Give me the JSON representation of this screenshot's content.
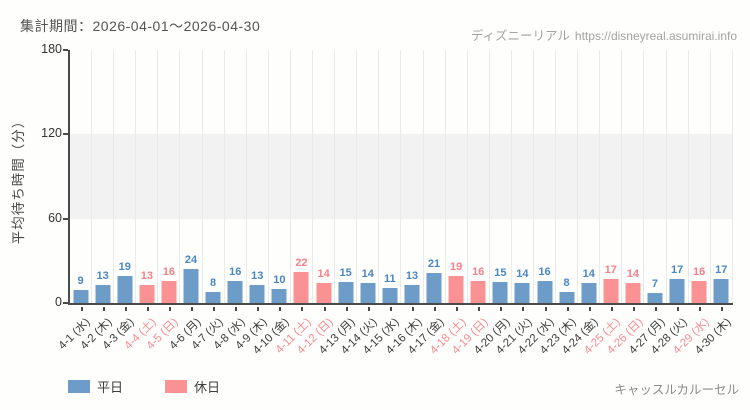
{
  "header": {
    "period_label": "集計期間：2026-04-01～2026-04-30",
    "watermark_site": "ディズニーリアル",
    "watermark_url": "https://disneyreal.asumirai.info"
  },
  "chart_data": {
    "type": "bar",
    "title": "",
    "xlabel": "",
    "ylabel": "平均待ち時間（分）",
    "ylim": [
      0,
      180
    ],
    "yticks": [
      0,
      60,
      120,
      180
    ],
    "band": {
      "from": 60,
      "to": 120,
      "color": "#f2f2f2"
    },
    "grid": "vertical",
    "legend_position": "bottom",
    "categories": [
      "4-1 (水)",
      "4-2 (木)",
      "4-3 (金)",
      "4-4 (土)",
      "4-5 (日)",
      "4-6 (月)",
      "4-7 (火)",
      "4-8 (水)",
      "4-9 (木)",
      "4-10 (金)",
      "4-11 (土)",
      "4-12 (日)",
      "4-13 (月)",
      "4-14 (火)",
      "4-15 (水)",
      "4-16 (木)",
      "4-17 (金)",
      "4-18 (土)",
      "4-19 (日)",
      "4-20 (月)",
      "4-21 (火)",
      "4-22 (水)",
      "4-23 (木)",
      "4-24 (金)",
      "4-25 (土)",
      "4-26 (日)",
      "4-27 (月)",
      "4-28 (火)",
      "4-29 (水)",
      "4-30 (木)"
    ],
    "values": [
      9,
      13,
      19,
      13,
      16,
      24,
      8,
      16,
      13,
      10,
      22,
      14,
      15,
      14,
      11,
      13,
      21,
      19,
      16,
      15,
      14,
      16,
      8,
      14,
      17,
      14,
      7,
      17,
      16,
      17
    ],
    "day_types": [
      "weekday",
      "weekday",
      "weekday",
      "holiday",
      "holiday",
      "weekday",
      "weekday",
      "weekday",
      "weekday",
      "weekday",
      "holiday",
      "holiday",
      "weekday",
      "weekday",
      "weekday",
      "weekday",
      "weekday",
      "holiday",
      "holiday",
      "weekday",
      "weekday",
      "weekday",
      "weekday",
      "weekday",
      "holiday",
      "holiday",
      "weekday",
      "weekday",
      "holiday",
      "weekday"
    ],
    "bar_colors": {
      "weekday": "#6d9cc8",
      "holiday": "#fa9193"
    },
    "value_label_colors": {
      "weekday": "#4a86c0",
      "holiday": "#f87f87"
    },
    "legend": [
      {
        "label": "平日",
        "type": "weekday"
      },
      {
        "label": "休日",
        "type": "holiday"
      }
    ]
  },
  "footer": {
    "attraction": "キャッスルカルーセル"
  }
}
